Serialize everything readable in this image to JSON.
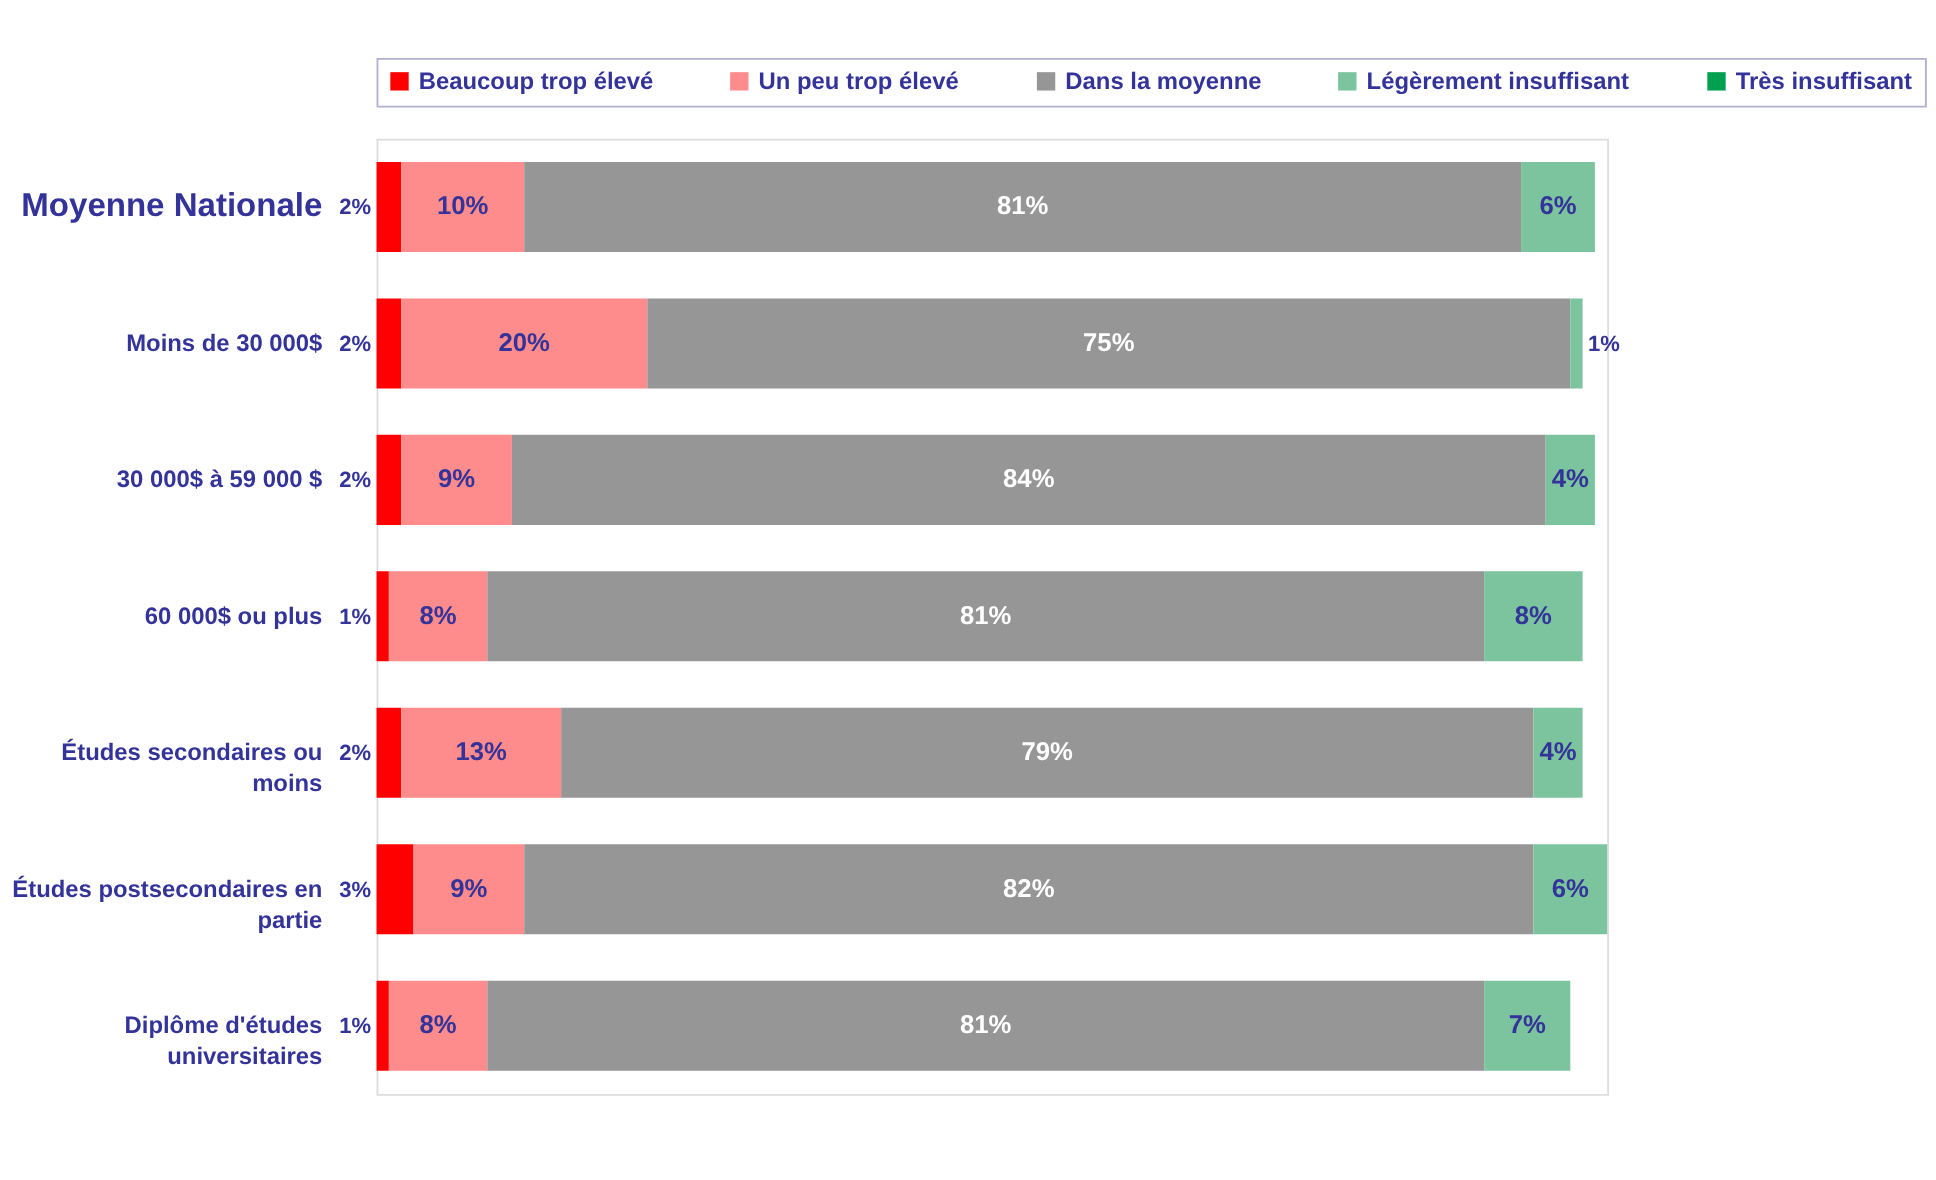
{
  "chart_data": {
    "type": "bar",
    "orientation": "horizontal",
    "stacked": true,
    "legend": "top",
    "categories": [
      "Moyenne Nationale",
      "Moins de 30 000$",
      "30 000$ à 59 000 $",
      "60 000$ ou plus",
      "Études secondaires ou moins",
      "Études postsecondaires en partie",
      "Diplôme d'études universitaires"
    ],
    "series": [
      {
        "name": "Beaucoup trop élevé",
        "color": "#ff0000",
        "values": [
          2,
          2,
          2,
          1,
          2,
          3,
          1
        ],
        "value_labels": [
          "2%",
          "2%",
          "2%",
          "1%",
          "2%",
          "3%",
          "1%"
        ]
      },
      {
        "name": "Un peu trop élevé",
        "color": "#ff8c8c",
        "values": [
          10,
          20,
          9,
          8,
          13,
          9,
          8
        ],
        "value_labels": [
          "10%",
          "20%",
          "9%",
          "8%",
          "13%",
          "9%",
          "8%"
        ]
      },
      {
        "name": "Dans la moyenne",
        "color": "#969696",
        "values": [
          81,
          75,
          84,
          81,
          79,
          82,
          81
        ],
        "value_labels": [
          "81%",
          "75%",
          "84%",
          "81%",
          "79%",
          "82%",
          "81%"
        ]
      },
      {
        "name": "Légèrement insuffisant",
        "color": "#7cc49e",
        "values": [
          6,
          1,
          4,
          8,
          4,
          6,
          7
        ],
        "value_labels": [
          "6%",
          "1%",
          "4%",
          "8%",
          "4%",
          "6%",
          "7%"
        ]
      },
      {
        "name": "Très insuffisant",
        "color": "#00a050",
        "values": [
          null,
          null,
          null,
          null,
          null,
          null,
          null
        ]
      }
    ]
  }
}
